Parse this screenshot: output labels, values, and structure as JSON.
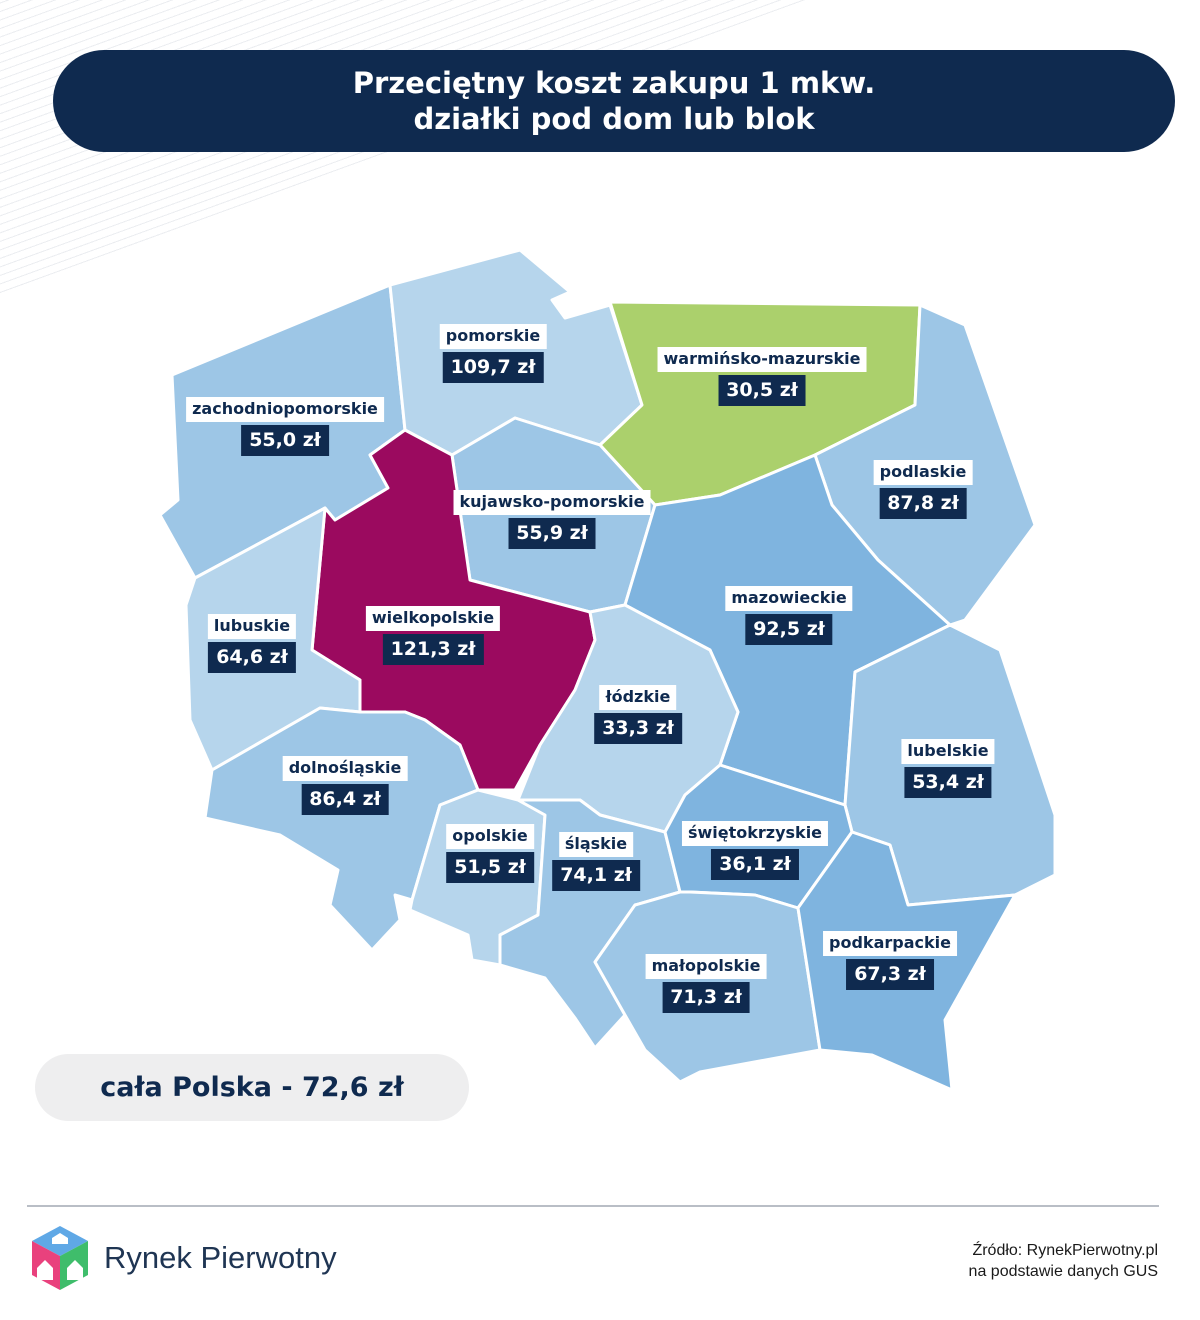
{
  "title": {
    "line1": "Przeciętny koszt zakupu 1 mkw.",
    "line2": "działki pod dom lub blok"
  },
  "colors": {
    "title_bg": "#0f2a4f",
    "highlight_max": "#9b0a5f",
    "highlight_min": "#abd06c",
    "region_light": "#b6d5ec",
    "region_mid": "#9dc6e6",
    "region_dark": "#7fb4df"
  },
  "regions": [
    {
      "name": "zachodniopomorskie",
      "value": "55,0 zł"
    },
    {
      "name": "pomorskie",
      "value": "109,7 zł"
    },
    {
      "name": "warmińsko-mazurskie",
      "value": "30,5 zł"
    },
    {
      "name": "podlaskie",
      "value": "87,8 zł"
    },
    {
      "name": "kujawsko-pomorskie",
      "value": "55,9 zł"
    },
    {
      "name": "wielkopolskie",
      "value": "121,3 zł"
    },
    {
      "name": "lubuskie",
      "value": "64,6 zł"
    },
    {
      "name": "mazowieckie",
      "value": "92,5 zł"
    },
    {
      "name": "łódzkie",
      "value": "33,3 zł"
    },
    {
      "name": "lubelskie",
      "value": "53,4 zł"
    },
    {
      "name": "dolnośląskie",
      "value": "86,4 zł"
    },
    {
      "name": "opolskie",
      "value": "51,5 zł"
    },
    {
      "name": "śląskie",
      "value": "74,1 zł"
    },
    {
      "name": "świętokrzyskie",
      "value": "36,1 zł"
    },
    {
      "name": "małopolskie",
      "value": "71,3 zł"
    },
    {
      "name": "podkarpackie",
      "value": "67,3 zł"
    }
  ],
  "total": "cała Polska - 72,6 zł",
  "brand": {
    "name": "Rynek Pierwotny",
    "logo_icon": "house-cube-logo"
  },
  "source": {
    "line1": "Źródło: RynekPierwotny.pl",
    "line2": "na podstawie danych GUS"
  }
}
